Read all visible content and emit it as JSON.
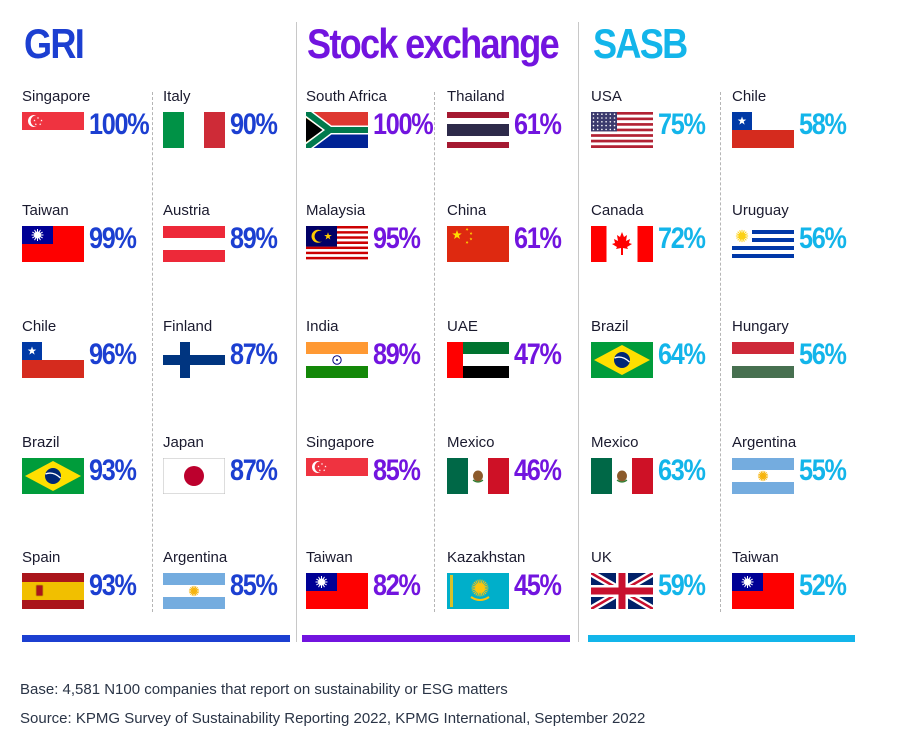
{
  "colors": {
    "gri": "#1c3fd1",
    "stock": "#7214df",
    "sasb": "#13b5ea"
  },
  "chart_data": {
    "type": "table",
    "groups": [
      {
        "key": "gri",
        "title": "GRI",
        "color": "#1c3fd1",
        "columns": [
          [
            {
              "country": "Singapore",
              "flag": "singapore",
              "value": "100%"
            },
            {
              "country": "Taiwan",
              "flag": "taiwan",
              "value": "99%"
            },
            {
              "country": "Chile",
              "flag": "chile",
              "value": "96%"
            },
            {
              "country": "Brazil",
              "flag": "brazil",
              "value": "93%"
            },
            {
              "country": "Spain",
              "flag": "spain",
              "value": "93%"
            }
          ],
          [
            {
              "country": "Italy",
              "flag": "italy",
              "value": "90%"
            },
            {
              "country": "Austria",
              "flag": "austria",
              "value": "89%"
            },
            {
              "country": "Finland",
              "flag": "finland",
              "value": "87%"
            },
            {
              "country": "Japan",
              "flag": "japan",
              "value": "87%"
            },
            {
              "country": "Argentina",
              "flag": "argentina",
              "value": "85%"
            }
          ]
        ]
      },
      {
        "key": "stock",
        "title": "Stock exchange",
        "color": "#7214df",
        "columns": [
          [
            {
              "country": "South Africa",
              "flag": "south-africa",
              "value": "100%"
            },
            {
              "country": "Malaysia",
              "flag": "malaysia",
              "value": "95%"
            },
            {
              "country": "India",
              "flag": "india",
              "value": "89%"
            },
            {
              "country": "Singapore",
              "flag": "singapore",
              "value": "85%"
            },
            {
              "country": "Taiwan",
              "flag": "taiwan",
              "value": "82%"
            }
          ],
          [
            {
              "country": "Thailand",
              "flag": "thailand",
              "value": "61%"
            },
            {
              "country": "China",
              "flag": "china",
              "value": "61%"
            },
            {
              "country": "UAE",
              "flag": "uae",
              "value": "47%"
            },
            {
              "country": "Mexico",
              "flag": "mexico",
              "value": "46%"
            },
            {
              "country": "Kazakhstan",
              "flag": "kazakhstan",
              "value": "45%"
            }
          ]
        ]
      },
      {
        "key": "sasb",
        "title": "SASB",
        "color": "#13b5ea",
        "columns": [
          [
            {
              "country": "USA",
              "flag": "usa",
              "value": "75%"
            },
            {
              "country": "Canada",
              "flag": "canada",
              "value": "72%"
            },
            {
              "country": "Brazil",
              "flag": "brazil",
              "value": "64%"
            },
            {
              "country": "Mexico",
              "flag": "mexico",
              "value": "63%"
            },
            {
              "country": "UK",
              "flag": "uk",
              "value": "59%"
            }
          ],
          [
            {
              "country": "Chile",
              "flag": "chile",
              "value": "58%"
            },
            {
              "country": "Uruguay",
              "flag": "uruguay",
              "value": "56%"
            },
            {
              "country": "Hungary",
              "flag": "hungary",
              "value": "56%"
            },
            {
              "country": "Argentina",
              "flag": "argentina",
              "value": "55%"
            },
            {
              "country": "Taiwan",
              "flag": "taiwan",
              "value": "52%"
            }
          ]
        ]
      }
    ]
  },
  "footer": {
    "base": "Base: 4,581 N100 companies that report on sustainability or ESG matters",
    "source": "Source: KPMG Survey of Sustainability Reporting 2022, KPMG International, September 2022"
  }
}
